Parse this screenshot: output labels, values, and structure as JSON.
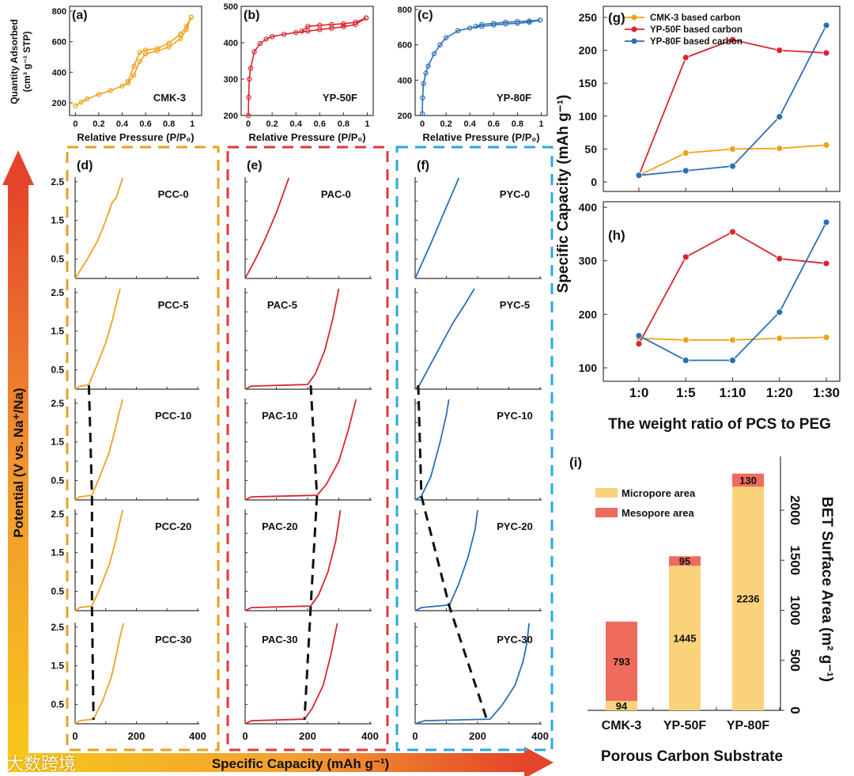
{
  "colors": {
    "cmk": "#EFA21E",
    "yp50": "#D9252E",
    "yp80": "#2D6FB7",
    "box_d": "#E8A020",
    "box_e": "#E0383A",
    "box_f": "#29A8E0",
    "micro": "#FAD27A",
    "meso": "#EE6B5E"
  },
  "arrows": {
    "vertical_label": "Potential (V vs. Na⁺/Na)",
    "horizontal_label": "Specific Capacity (mAh g⁻¹)"
  },
  "watermark": "大数跨境",
  "chart_data": [
    {
      "id": "a",
      "type": "line",
      "panel_label": "(a)",
      "sample": "CMK-3",
      "xlabel": "Relative Pressure (P/P₀)",
      "ylabel": "Quantity Adsorbed",
      "ylabel2": "(cm³ g⁻¹ STP)",
      "xticks": [
        0.0,
        0.2,
        0.4,
        0.6,
        0.8,
        1.0
      ],
      "yticks": [
        200,
        400,
        600,
        800
      ],
      "xlim": [
        -0.05,
        1.08
      ],
      "ylim": [
        117,
        831
      ],
      "color": "cmk",
      "adsorption": [
        [
          0,
          180
        ],
        [
          0.05,
          205
        ],
        [
          0.1,
          225
        ],
        [
          0.2,
          255
        ],
        [
          0.3,
          280
        ],
        [
          0.4,
          310
        ],
        [
          0.45,
          330
        ],
        [
          0.5,
          380
        ],
        [
          0.55,
          470
        ],
        [
          0.6,
          520
        ],
        [
          0.7,
          540
        ],
        [
          0.8,
          565
        ],
        [
          0.9,
          620
        ],
        [
          0.95,
          680
        ],
        [
          0.99,
          760
        ]
      ],
      "desorption": [
        [
          0.99,
          760
        ],
        [
          0.95,
          700
        ],
        [
          0.9,
          650
        ],
        [
          0.8,
          590
        ],
        [
          0.7,
          555
        ],
        [
          0.6,
          545
        ],
        [
          0.55,
          530
        ],
        [
          0.5,
          440
        ],
        [
          0.45,
          340
        ]
      ]
    },
    {
      "id": "b",
      "type": "line",
      "panel_label": "(b)",
      "sample": "YP-50F",
      "xlabel": "Relative Pressure (P/P₀)",
      "xticks": [
        0.0,
        0.2,
        0.4,
        0.6,
        0.8,
        1.0
      ],
      "yticks": [
        200,
        300,
        400,
        500
      ],
      "xlim": [
        -0.06,
        1.05
      ],
      "ylim": [
        200,
        500
      ],
      "color": "yp50",
      "adsorption": [
        [
          0,
          200
        ],
        [
          0.003,
          250
        ],
        [
          0.008,
          300
        ],
        [
          0.02,
          330
        ],
        [
          0.05,
          375
        ],
        [
          0.1,
          398
        ],
        [
          0.15,
          410
        ],
        [
          0.2,
          417
        ],
        [
          0.3,
          423
        ],
        [
          0.4,
          428
        ],
        [
          0.5,
          432
        ],
        [
          0.6,
          436
        ],
        [
          0.7,
          440
        ],
        [
          0.8,
          444
        ],
        [
          0.9,
          450
        ],
        [
          0.99,
          468
        ]
      ],
      "desorption": [
        [
          0.99,
          468
        ],
        [
          0.9,
          456
        ],
        [
          0.8,
          452
        ],
        [
          0.7,
          450
        ],
        [
          0.6,
          448
        ],
        [
          0.5,
          445
        ],
        [
          0.45,
          432
        ]
      ]
    },
    {
      "id": "c",
      "type": "line",
      "panel_label": "(c)",
      "sample": "YP-80F",
      "xlabel": "Relative Pressure (P/P₀)",
      "xticks": [
        0.0,
        0.2,
        0.4,
        0.6,
        0.8,
        1.0
      ],
      "yticks": [
        200,
        400,
        600,
        800
      ],
      "xlim": [
        -0.06,
        1.05
      ],
      "ylim": [
        200,
        818
      ],
      "color": "yp80",
      "adsorption": [
        [
          0,
          210
        ],
        [
          0.003,
          300
        ],
        [
          0.01,
          380
        ],
        [
          0.03,
          440
        ],
        [
          0.05,
          480
        ],
        [
          0.1,
          550
        ],
        [
          0.15,
          600
        ],
        [
          0.2,
          640
        ],
        [
          0.3,
          680
        ],
        [
          0.4,
          695
        ],
        [
          0.5,
          705
        ],
        [
          0.6,
          712
        ],
        [
          0.7,
          718
        ],
        [
          0.8,
          722
        ],
        [
          0.9,
          728
        ],
        [
          0.99,
          740
        ]
      ],
      "desorption": [
        [
          0.99,
          740
        ],
        [
          0.9,
          735
        ],
        [
          0.8,
          732
        ],
        [
          0.7,
          728
        ],
        [
          0.6,
          722
        ],
        [
          0.5,
          715
        ],
        [
          0.45,
          705
        ]
      ]
    },
    {
      "id": "d",
      "type": "line",
      "panel_label": "(d)",
      "color": "cmk",
      "xlim": [
        0,
        400
      ],
      "ylim": [
        0,
        2.7
      ],
      "xticks": [
        0,
        200,
        400
      ],
      "yticks": [
        0.5,
        1.5,
        2.5
      ],
      "curves": [
        {
          "name": "PCC-0",
          "points": [
            [
              0,
              0
            ],
            [
              40,
              0.5
            ],
            [
              75,
              1.0
            ],
            [
              100,
              1.5
            ],
            [
              120,
              1.95
            ],
            [
              135,
              2.1
            ],
            [
              155,
              2.6
            ]
          ]
        },
        {
          "name": "PCC-5",
          "points": [
            [
              0,
              0
            ],
            [
              15,
              0.07
            ],
            [
              45,
              0.12
            ],
            [
              70,
              0.6
            ],
            [
              100,
              1.2
            ],
            [
              122,
              1.8
            ],
            [
              137,
              2.3
            ],
            [
              147,
              2.6
            ]
          ]
        },
        {
          "name": "PCC-10",
          "points": [
            [
              0,
              0
            ],
            [
              15,
              0.08
            ],
            [
              55,
              0.12
            ],
            [
              80,
              0.6
            ],
            [
              110,
              1.2
            ],
            [
              130,
              1.8
            ],
            [
              145,
              2.3
            ],
            [
              155,
              2.6
            ]
          ]
        },
        {
          "name": "PCC-20",
          "points": [
            [
              0,
              0
            ],
            [
              15,
              0.08
            ],
            [
              55,
              0.12
            ],
            [
              82,
              0.6
            ],
            [
              112,
              1.2
            ],
            [
              132,
              1.8
            ],
            [
              146,
              2.3
            ],
            [
              155,
              2.6
            ]
          ]
        },
        {
          "name": "PCC-30",
          "points": [
            [
              0,
              0
            ],
            [
              15,
              0.08
            ],
            [
              60,
              0.12
            ],
            [
              90,
              0.6
            ],
            [
              118,
              1.2
            ],
            [
              135,
              1.8
            ],
            [
              148,
              2.3
            ],
            [
              158,
              2.6
            ]
          ]
        }
      ],
      "trend_line": [
        [
          45,
          0.1
        ],
        [
          55,
          0.1
        ],
        [
          55,
          0.1
        ],
        [
          60,
          0.1
        ]
      ]
    },
    {
      "id": "e",
      "type": "line",
      "panel_label": "(e)",
      "color": "yp50",
      "xlim": [
        0,
        400
      ],
      "ylim": [
        0,
        2.7
      ],
      "xticks": [
        0,
        200,
        400
      ],
      "curves": [
        {
          "name": "PAC-0",
          "points": [
            [
              0,
              0
            ],
            [
              30,
              0.45
            ],
            [
              60,
              0.95
            ],
            [
              100,
              1.7
            ],
            [
              140,
              2.6
            ]
          ]
        },
        {
          "name": "PAC-5",
          "points": [
            [
              0,
              0
            ],
            [
              20,
              0.08
            ],
            [
              200,
              0.12
            ],
            [
              225,
              0.4
            ],
            [
              255,
              1.0
            ],
            [
              280,
              1.8
            ],
            [
              300,
              2.6
            ]
          ]
        },
        {
          "name": "PAC-10",
          "points": [
            [
              0,
              0
            ],
            [
              20,
              0.08
            ],
            [
              230,
              0.12
            ],
            [
              260,
              0.4
            ],
            [
              300,
              1.0
            ],
            [
              330,
              1.8
            ],
            [
              355,
              2.6
            ]
          ]
        },
        {
          "name": "PAC-20",
          "points": [
            [
              0,
              0
            ],
            [
              20,
              0.08
            ],
            [
              210,
              0.12
            ],
            [
              235,
              0.4
            ],
            [
              265,
              1.0
            ],
            [
              290,
              1.8
            ],
            [
              305,
              2.6
            ]
          ]
        },
        {
          "name": "PAC-30",
          "points": [
            [
              0,
              0
            ],
            [
              20,
              0.08
            ],
            [
              190,
              0.12
            ],
            [
              215,
              0.4
            ],
            [
              250,
              1.0
            ],
            [
              275,
              1.8
            ],
            [
              295,
              2.6
            ]
          ]
        }
      ],
      "trend_line": [
        [
          210,
          0.1
        ],
        [
          230,
          0.1
        ],
        [
          210,
          0.1
        ],
        [
          190,
          0.1
        ]
      ]
    },
    {
      "id": "f",
      "type": "line",
      "panel_label": "(f)",
      "color": "yp80",
      "xlim": [
        0,
        400
      ],
      "ylim": [
        0,
        2.7
      ],
      "xticks": [
        0,
        200,
        400
      ],
      "curves": [
        {
          "name": "PYC-0",
          "points": [
            [
              0,
              0
            ],
            [
              50,
              0.9
            ],
            [
              100,
              1.85
            ],
            [
              140,
              2.6
            ]
          ]
        },
        {
          "name": "PYC-5",
          "points": [
            [
              0,
              0
            ],
            [
              15,
              0.12
            ],
            [
              60,
              0.8
            ],
            [
              120,
              1.7
            ],
            [
              160,
              2.2
            ],
            [
              190,
              2.6
            ]
          ]
        },
        {
          "name": "PYC-10",
          "points": [
            [
              0,
              0
            ],
            [
              20,
              0.1
            ],
            [
              50,
              0.6
            ],
            [
              80,
              1.5
            ],
            [
              100,
              2.2
            ],
            [
              108,
              2.6
            ]
          ]
        },
        {
          "name": "PYC-20",
          "points": [
            [
              0,
              0
            ],
            [
              20,
              0.08
            ],
            [
              110,
              0.15
            ],
            [
              140,
              0.7
            ],
            [
              170,
              1.4
            ],
            [
              192,
              2.1
            ],
            [
              200,
              2.6
            ]
          ]
        },
        {
          "name": "PYC-30",
          "points": [
            [
              0,
              0
            ],
            [
              30,
              0.08
            ],
            [
              240,
              0.12
            ],
            [
              280,
              0.5
            ],
            [
              320,
              1.0
            ],
            [
              345,
              1.6
            ],
            [
              358,
              2.1
            ],
            [
              365,
              2.6
            ]
          ]
        }
      ],
      "trend_line": [
        [
          10,
          0.1
        ],
        [
          20,
          0.1
        ],
        [
          110,
          0.1
        ],
        [
          230,
          0.1
        ]
      ]
    },
    {
      "id": "g",
      "type": "line",
      "panel_label": "(g)",
      "categories": [
        "1:0",
        "1:5",
        "1:10",
        "1:20",
        "1:30"
      ],
      "yticks": [
        0,
        50,
        100,
        150,
        200,
        250
      ],
      "ylim": [
        -5,
        265
      ],
      "series": [
        {
          "name": "CMK-3 based carbon",
          "color": "cmk",
          "values": [
            10,
            44,
            50,
            51,
            56
          ]
        },
        {
          "name": "YP-50F based carbon",
          "color": "yp50",
          "values": [
            10,
            189,
            216,
            200,
            196
          ]
        },
        {
          "name": "YP-80F based carbon",
          "color": "yp80",
          "values": [
            10,
            17,
            24,
            99,
            238
          ]
        }
      ],
      "legend": "top-left"
    },
    {
      "id": "h",
      "type": "line",
      "panel_label": "(h)",
      "categories": [
        "1:0",
        "1:5",
        "1:10",
        "1:20",
        "1:30"
      ],
      "yticks": [
        100,
        200,
        300,
        400
      ],
      "ylim": [
        75,
        402
      ],
      "series": [
        {
          "name": "CMK-3 based carbon",
          "color": "cmk",
          "values": [
            155,
            152,
            152,
            155,
            157
          ]
        },
        {
          "name": "YP-50F based carbon",
          "color": "yp50",
          "values": [
            145,
            307,
            354,
            304,
            295
          ]
        },
        {
          "name": "YP-80F based carbon",
          "color": "yp80",
          "values": [
            160,
            114,
            114,
            204,
            372
          ]
        }
      ],
      "xlabel": "The weight ratio of PCS to PEG",
      "ylabel": "Specific Capacity (mAh g⁻¹)"
    },
    {
      "id": "i",
      "type": "bar",
      "panel_label": "(i)",
      "categories": [
        "CMK-3",
        "YP-50F",
        "YP-80F"
      ],
      "series": [
        {
          "name": "Micropore area",
          "color": "micro",
          "values": [
            94,
            1445,
            2236
          ]
        },
        {
          "name": "Mesopore area",
          "color": "meso",
          "values": [
            793,
            95,
            130
          ]
        }
      ],
      "yticks": [
        0,
        500,
        1000,
        1500,
        2000
      ],
      "ylim": [
        0,
        2400
      ],
      "xlabel": "Porous Carbon Substrate",
      "ylabel": "BET Surface Area (m² g⁻¹)",
      "legend": "top-left",
      "stacked": true
    }
  ]
}
